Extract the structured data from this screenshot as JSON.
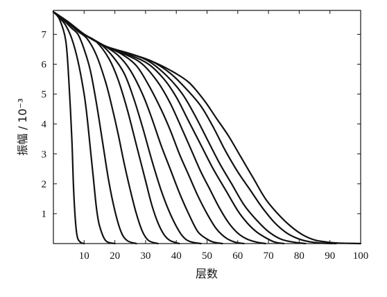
{
  "chart_data": {
    "type": "line",
    "xlabel": "层数",
    "ylabel": "振幅 / 10⁻³",
    "xlim": [
      0,
      100
    ],
    "ylim": [
      0,
      7.8
    ],
    "xticks": [
      "10",
      "20",
      "30",
      "40",
      "50",
      "60",
      "70",
      "80",
      "90",
      "100"
    ],
    "yticks": [
      "1",
      "2",
      "3",
      "4",
      "5",
      "6",
      "7"
    ],
    "grid": false,
    "series": [
      {
        "x": [
          0,
          2,
          4,
          5,
          6,
          6.5,
          7,
          7.5,
          8,
          9,
          10
        ],
        "y": [
          7.75,
          7.5,
          6.8,
          5.5,
          3.5,
          2.0,
          1.0,
          0.4,
          0.15,
          0.03,
          0
        ]
      },
      {
        "x": [
          0,
          2,
          4,
          6,
          8,
          10,
          11,
          12,
          13,
          14,
          15,
          17,
          20
        ],
        "y": [
          7.75,
          7.55,
          7.3,
          6.85,
          6.1,
          5.0,
          4.2,
          3.2,
          2.2,
          1.2,
          0.6,
          0.1,
          0
        ]
      },
      {
        "x": [
          0,
          3,
          6,
          8,
          10,
          12,
          14,
          16,
          18,
          20,
          22,
          24,
          27
        ],
        "y": [
          7.75,
          7.5,
          7.2,
          7.0,
          6.5,
          5.8,
          4.7,
          3.4,
          2.1,
          1.1,
          0.4,
          0.1,
          0
        ]
      },
      {
        "x": [
          0,
          4,
          8,
          11,
          14,
          17,
          19,
          21,
          23,
          25,
          27,
          29,
          31,
          34
        ],
        "y": [
          7.75,
          7.45,
          7.1,
          6.85,
          6.3,
          5.4,
          4.6,
          3.7,
          2.7,
          1.8,
          1.0,
          0.4,
          0.1,
          0
        ]
      },
      {
        "x": [
          0,
          5,
          10,
          14,
          18,
          21,
          24,
          27,
          30,
          32,
          34,
          36,
          38,
          41
        ],
        "y": [
          7.75,
          7.4,
          7.0,
          6.75,
          6.2,
          5.5,
          4.5,
          3.3,
          2.1,
          1.3,
          0.7,
          0.3,
          0.1,
          0
        ]
      },
      {
        "x": [
          0,
          5,
          10,
          15,
          19,
          23,
          26,
          29,
          32,
          35,
          38,
          41,
          43,
          45,
          48
        ],
        "y": [
          7.75,
          7.4,
          7.0,
          6.7,
          6.3,
          5.7,
          4.9,
          3.9,
          2.8,
          1.8,
          1.0,
          0.4,
          0.15,
          0.05,
          0
        ]
      },
      {
        "x": [
          0,
          5,
          10,
          16,
          21,
          25,
          29,
          32,
          35,
          38,
          41,
          44,
          47,
          50,
          52,
          55
        ],
        "y": [
          7.75,
          7.4,
          7.0,
          6.65,
          6.3,
          5.8,
          5.0,
          4.2,
          3.3,
          2.5,
          1.7,
          1.0,
          0.4,
          0.15,
          0.05,
          0
        ]
      },
      {
        "x": [
          0,
          5,
          10,
          16,
          22,
          27,
          31,
          35,
          38,
          41,
          44,
          47,
          50,
          53,
          56,
          59,
          62
        ],
        "y": [
          7.75,
          7.4,
          7.0,
          6.65,
          6.35,
          5.95,
          5.3,
          4.5,
          3.8,
          3.0,
          2.3,
          1.6,
          1.0,
          0.5,
          0.2,
          0.05,
          0
        ]
      },
      {
        "x": [
          0,
          5,
          10,
          17,
          24,
          29,
          34,
          38,
          42,
          45,
          48,
          51,
          54,
          57,
          60,
          63,
          66,
          69
        ],
        "y": [
          7.75,
          7.4,
          7.0,
          6.6,
          6.3,
          6.0,
          5.4,
          4.7,
          3.8,
          3.1,
          2.4,
          1.8,
          1.2,
          0.7,
          0.35,
          0.15,
          0.05,
          0
        ]
      },
      {
        "x": [
          0,
          5,
          10,
          17,
          25,
          31,
          36,
          40,
          44,
          48,
          52,
          56,
          60,
          63,
          66,
          69,
          72,
          75
        ],
        "y": [
          7.75,
          7.4,
          7.0,
          6.6,
          6.3,
          6.0,
          5.5,
          4.9,
          4.1,
          3.3,
          2.5,
          1.8,
          1.1,
          0.7,
          0.4,
          0.2,
          0.05,
          0
        ]
      },
      {
        "x": [
          0,
          5,
          10,
          17,
          25,
          31,
          37,
          42,
          46,
          50,
          54,
          58,
          62,
          66,
          70,
          74,
          78,
          82
        ],
        "y": [
          7.75,
          7.4,
          7.0,
          6.6,
          6.35,
          6.1,
          5.6,
          5.0,
          4.3,
          3.5,
          2.7,
          2.0,
          1.3,
          0.8,
          0.4,
          0.15,
          0.05,
          0
        ]
      },
      {
        "x": [
          0,
          5,
          10,
          17,
          25,
          32,
          38,
          43,
          48,
          52,
          56,
          60,
          64,
          68,
          72,
          76,
          80,
          84,
          88,
          92
        ],
        "y": [
          7.75,
          7.4,
          7.0,
          6.6,
          6.35,
          6.1,
          5.7,
          5.2,
          4.6,
          3.9,
          3.1,
          2.4,
          1.8,
          1.2,
          0.7,
          0.35,
          0.15,
          0.05,
          0.01,
          0
        ]
      },
      {
        "x": [
          0,
          5,
          10,
          17,
          25,
          32,
          38,
          44,
          49,
          53,
          57,
          61,
          65,
          69,
          73,
          77,
          81,
          85,
          89,
          92,
          95,
          100
        ],
        "y": [
          7.75,
          7.4,
          7.0,
          6.6,
          6.35,
          6.1,
          5.8,
          5.4,
          4.8,
          4.2,
          3.6,
          2.9,
          2.2,
          1.5,
          1.0,
          0.6,
          0.3,
          0.12,
          0.05,
          0.02,
          0.01,
          0
        ]
      }
    ]
  }
}
